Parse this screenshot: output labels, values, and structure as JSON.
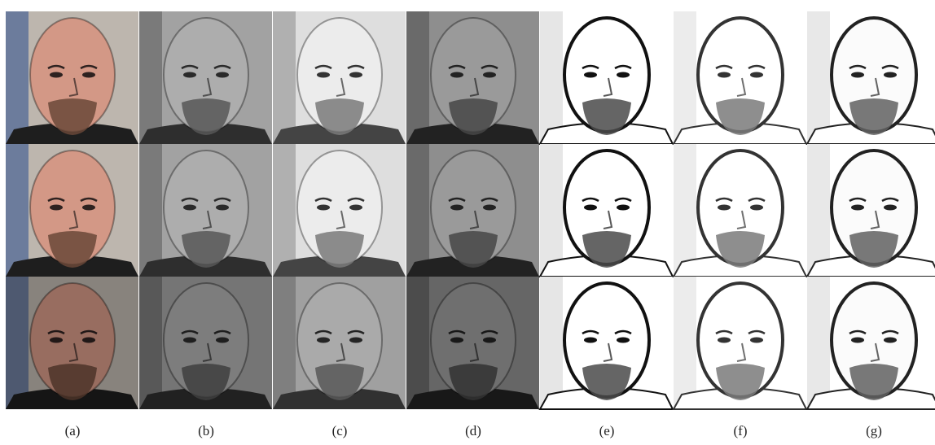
{
  "labels": [
    "(a)",
    "(b)",
    "(c)",
    "(d)",
    "(e)",
    "(f)",
    "(g)"
  ]
}
